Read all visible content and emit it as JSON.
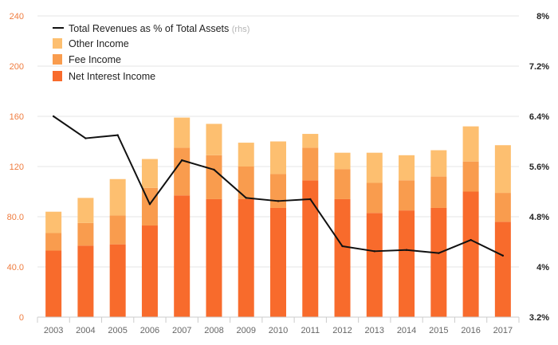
{
  "chart_data": {
    "type": "bar",
    "stacked": true,
    "categories": [
      "2003",
      "2004",
      "2005",
      "2006",
      "2007",
      "2008",
      "2009",
      "2010",
      "2011",
      "2012",
      "2013",
      "2014",
      "2015",
      "2016",
      "2017"
    ],
    "series": [
      {
        "name": "Net Interest Income",
        "color": "#f86b2c",
        "values": [
          53,
          57,
          58,
          73,
          97,
          94,
          94,
          87,
          109,
          94,
          83,
          85,
          87,
          100,
          76
        ]
      },
      {
        "name": "Fee Income",
        "color": "#f99c4e",
        "values": [
          14,
          18,
          23,
          30,
          38,
          35,
          26,
          27,
          26,
          24,
          24,
          24,
          25,
          24,
          23
        ]
      },
      {
        "name": "Other Income",
        "color": "#fdbf70",
        "values": [
          17,
          20,
          29,
          23,
          24,
          25,
          19,
          26,
          11,
          13,
          24,
          20,
          21,
          28,
          38
        ]
      }
    ],
    "line_series": {
      "name": "Total Revenues as % of Total Assets",
      "note": "(rhs)",
      "color": "#111111",
      "values": [
        6.4,
        6.05,
        6.1,
        5.0,
        5.7,
        5.55,
        5.1,
        5.05,
        5.08,
        4.33,
        4.25,
        4.27,
        4.22,
        4.43,
        4.18
      ]
    },
    "y_left": {
      "min": 0,
      "max": 240,
      "ticks": [
        "0",
        "40.0",
        "80.0",
        "120",
        "160",
        "200",
        "240"
      ],
      "tick_values": [
        0,
        40,
        80,
        120,
        160,
        200,
        240
      ]
    },
    "y_right": {
      "min": 3.2,
      "max": 8.0,
      "ticks": [
        "3.2%",
        "4%",
        "4.8%",
        "5.6%",
        "6.4%",
        "7.2%",
        "8%"
      ],
      "tick_values": [
        3.2,
        4.0,
        4.8,
        5.6,
        6.4,
        7.2,
        8.0
      ]
    },
    "title": "",
    "xlabel": "",
    "ylabel": "",
    "grid": true,
    "legend_position": "top-left"
  }
}
